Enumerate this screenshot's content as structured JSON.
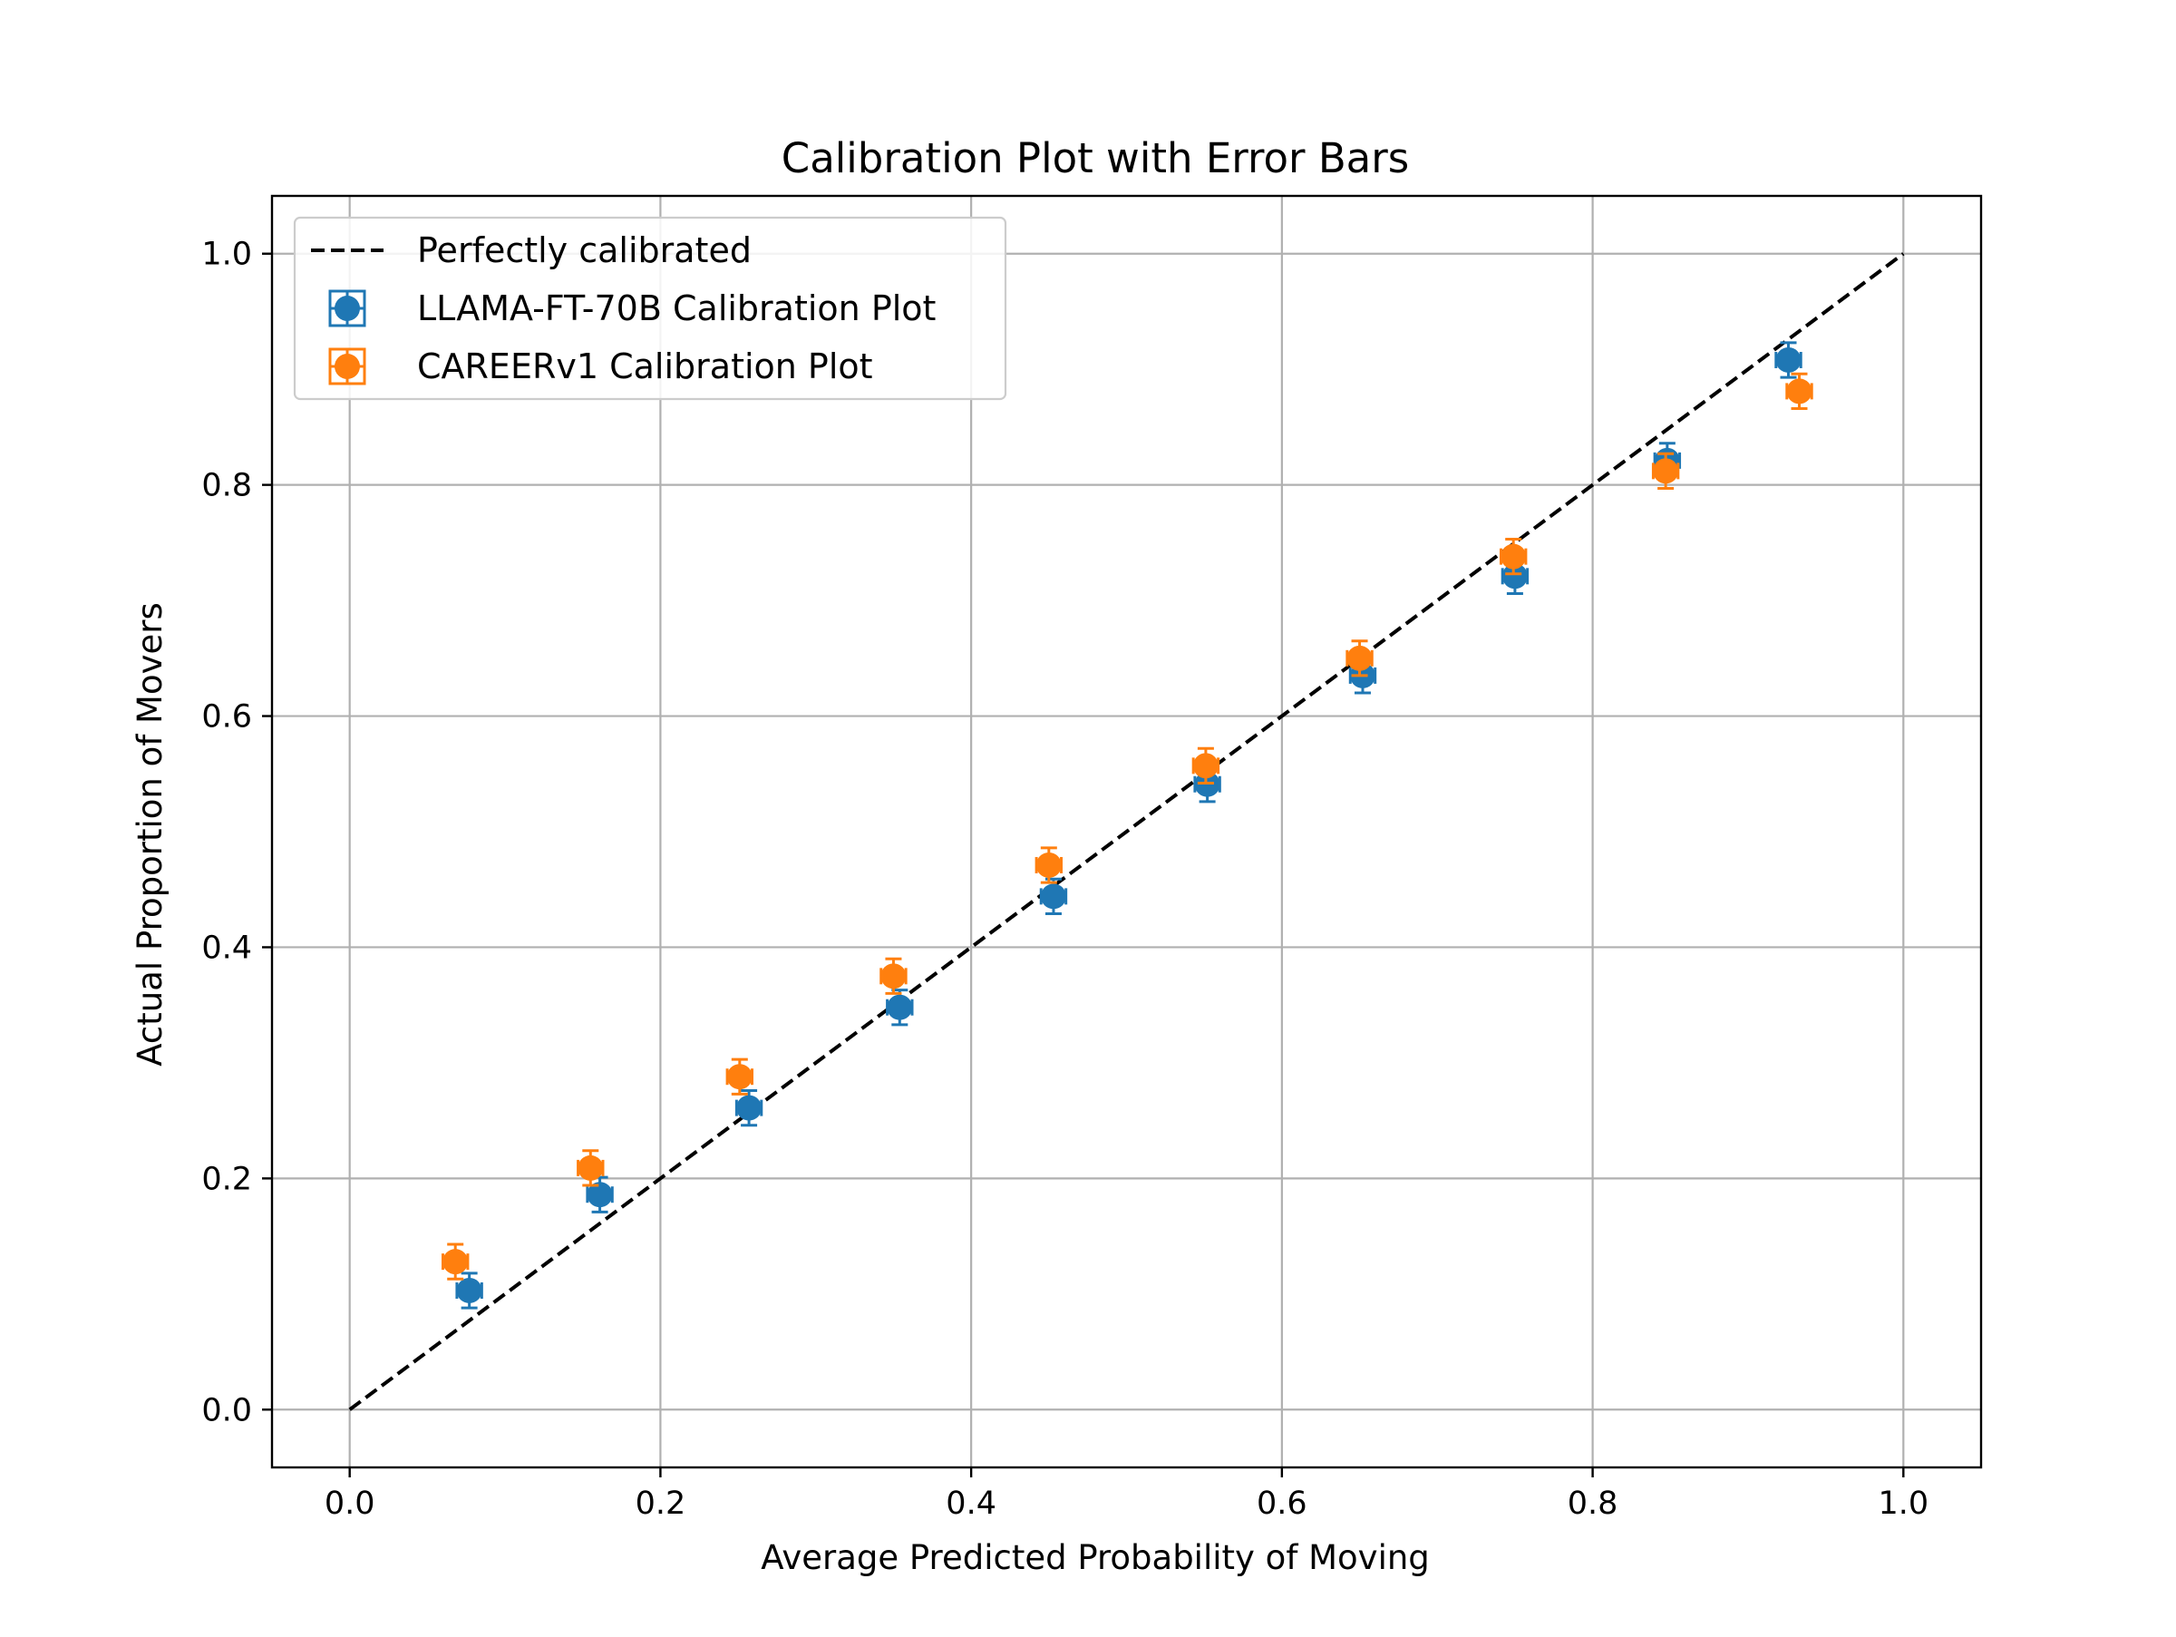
{
  "chart_data": {
    "type": "scatter",
    "title": "Calibration Plot with Error Bars",
    "xlabel": "Average Predicted Probability of Moving",
    "ylabel": "Actual Proportion of Movers",
    "xlim": [
      -0.05,
      1.05
    ],
    "ylim": [
      -0.05,
      1.05
    ],
    "xticks": [
      0.0,
      0.2,
      0.4,
      0.6,
      0.8,
      1.0
    ],
    "yticks": [
      0.0,
      0.2,
      0.4,
      0.6,
      0.8,
      1.0
    ],
    "xtick_labels": [
      "0.0",
      "0.2",
      "0.4",
      "0.6",
      "0.8",
      "1.0"
    ],
    "ytick_labels": [
      "0.0",
      "0.2",
      "0.4",
      "0.6",
      "0.8",
      "1.0"
    ],
    "grid": true,
    "legend_position": "top-left",
    "reference_line": {
      "name": "Perfectly calibrated",
      "x": [
        0.0,
        1.0
      ],
      "y": [
        0.0,
        1.0
      ],
      "color": "#000000",
      "style": "dashed"
    },
    "series": [
      {
        "name": "LLAMA-FT-70B Calibration Plot",
        "color": "#1f77b4",
        "x": [
          0.077,
          0.161,
          0.257,
          0.354,
          0.453,
          0.552,
          0.652,
          0.75,
          0.848,
          0.926
        ],
        "y": [
          0.103,
          0.186,
          0.261,
          0.348,
          0.444,
          0.541,
          0.635,
          0.721,
          0.821,
          0.908
        ],
        "xerr": [
          0.008,
          0.008,
          0.008,
          0.008,
          0.008,
          0.008,
          0.008,
          0.008,
          0.008,
          0.008
        ],
        "yerr": [
          0.015,
          0.015,
          0.015,
          0.015,
          0.015,
          0.015,
          0.015,
          0.015,
          0.015,
          0.015
        ]
      },
      {
        "name": "CAREERv1 Calibration Plot",
        "color": "#ff7f0e",
        "x": [
          0.068,
          0.155,
          0.251,
          0.35,
          0.45,
          0.551,
          0.65,
          0.749,
          0.847,
          0.933
        ],
        "y": [
          0.128,
          0.209,
          0.288,
          0.375,
          0.471,
          0.557,
          0.65,
          0.738,
          0.812,
          0.881
        ],
        "xerr": [
          0.008,
          0.008,
          0.008,
          0.008,
          0.008,
          0.008,
          0.008,
          0.008,
          0.008,
          0.008
        ],
        "yerr": [
          0.015,
          0.015,
          0.015,
          0.015,
          0.015,
          0.015,
          0.015,
          0.015,
          0.015,
          0.015
        ]
      }
    ]
  }
}
